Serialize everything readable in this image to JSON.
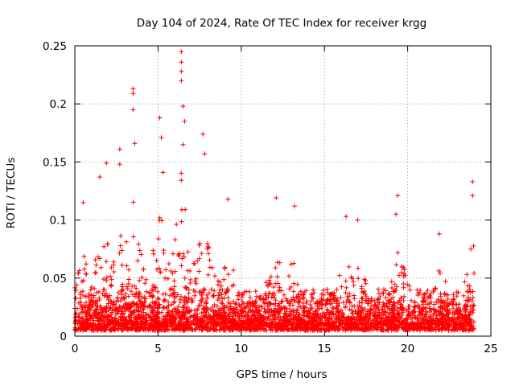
{
  "chart_data": {
    "type": "scatter",
    "title": "Day 104 of 2024, Rate Of TEC Index for receiver krgg",
    "xlabel": "GPS time / hours",
    "ylabel": "ROTI / TECUs",
    "xlim": [
      0,
      25
    ],
    "ylim": [
      0,
      0.25
    ],
    "xticks": [
      0,
      5,
      10,
      15,
      20,
      25
    ],
    "yticks": [
      0,
      0.05,
      0.1,
      0.15,
      0.2,
      0.25
    ],
    "xtick_labels": [
      "0",
      "5",
      "10",
      "15",
      "20",
      "25"
    ],
    "ytick_labels": [
      "0",
      "0.05",
      "0.1",
      "0.15",
      "0.2",
      "0.25"
    ],
    "grid": true,
    "marker": "+",
    "color": "#ff0000",
    "series": [
      {
        "name": "ROTI",
        "x_range": [
          0,
          24
        ],
        "baseline_band": [
          0.005,
          0.03
        ],
        "notable_points": [
          {
            "x": 0.5,
            "y": 0.115
          },
          {
            "x": 1.5,
            "y": 0.137
          },
          {
            "x": 1.9,
            "y": 0.149
          },
          {
            "x": 2.7,
            "y": 0.161
          },
          {
            "x": 2.7,
            "y": 0.148
          },
          {
            "x": 3.5,
            "y": 0.213
          },
          {
            "x": 3.5,
            "y": 0.209
          },
          {
            "x": 3.5,
            "y": 0.195
          },
          {
            "x": 3.6,
            "y": 0.166
          },
          {
            "x": 5.1,
            "y": 0.188
          },
          {
            "x": 5.2,
            "y": 0.171
          },
          {
            "x": 5.3,
            "y": 0.141
          },
          {
            "x": 6.4,
            "y": 0.245
          },
          {
            "x": 6.4,
            "y": 0.236
          },
          {
            "x": 6.4,
            "y": 0.228
          },
          {
            "x": 6.4,
            "y": 0.22
          },
          {
            "x": 6.5,
            "y": 0.198
          },
          {
            "x": 6.6,
            "y": 0.185
          },
          {
            "x": 6.5,
            "y": 0.165
          },
          {
            "x": 7.7,
            "y": 0.174
          },
          {
            "x": 7.8,
            "y": 0.157
          },
          {
            "x": 9.2,
            "y": 0.118
          },
          {
            "x": 12.1,
            "y": 0.119
          },
          {
            "x": 13.2,
            "y": 0.112
          },
          {
            "x": 16.3,
            "y": 0.103
          },
          {
            "x": 17.0,
            "y": 0.1
          },
          {
            "x": 19.4,
            "y": 0.121
          },
          {
            "x": 19.3,
            "y": 0.105
          },
          {
            "x": 21.9,
            "y": 0.088
          },
          {
            "x": 23.9,
            "y": 0.133
          },
          {
            "x": 23.9,
            "y": 0.121
          },
          {
            "x": 23.8,
            "y": 0.075
          }
        ]
      }
    ]
  }
}
